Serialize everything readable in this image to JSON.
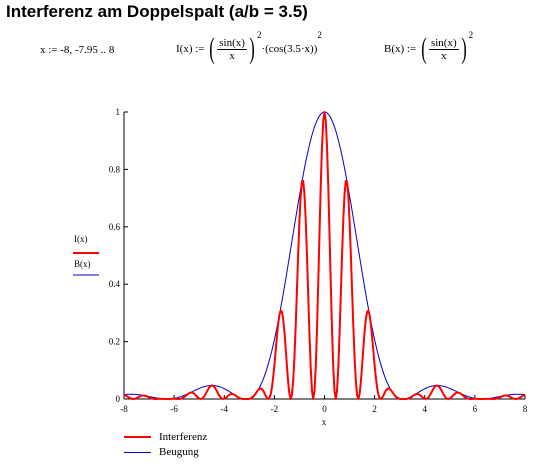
{
  "title": "Interferenz am Doppelspalt (a/b = 3.5)",
  "formulas": {
    "range": "x := -8, -7.95 .. 8",
    "I_lhs": "I(x)",
    "I_assign": ":=",
    "I_num": "sin(x)",
    "I_den": "x",
    "I_exp": "2",
    "I_dot": "·",
    "I_cos": "cos(3.5·x)",
    "I_exp2": "2",
    "B_lhs": "B(x)",
    "B_assign": ":=",
    "B_num": "sin(x)",
    "B_den": "x",
    "B_exp": "2"
  },
  "chart_data": {
    "type": "line",
    "xlabel": "x",
    "ylabel_top": "I(x)",
    "ylabel_bottom": "B(x)",
    "xlim": [
      -8,
      8
    ],
    "ylim": [
      0,
      1
    ],
    "xticks": [
      -8,
      -6,
      -4,
      -2,
      0,
      2,
      4,
      6,
      8
    ],
    "yticks": [
      0,
      0.2,
      0.4,
      0.6,
      0.8,
      1
    ],
    "x_start": -8,
    "x_end": 8,
    "x_step": 0.05,
    "series": [
      {
        "name": "Interferenz",
        "formula": "(sin(x)/x)^2 · cos(3.5·x)^2",
        "color": "#ff0000"
      },
      {
        "name": "Beugung",
        "formula": "(sin(x)/x)^2",
        "color": "#0000cc"
      }
    ],
    "legend_position": "bottom-left"
  }
}
